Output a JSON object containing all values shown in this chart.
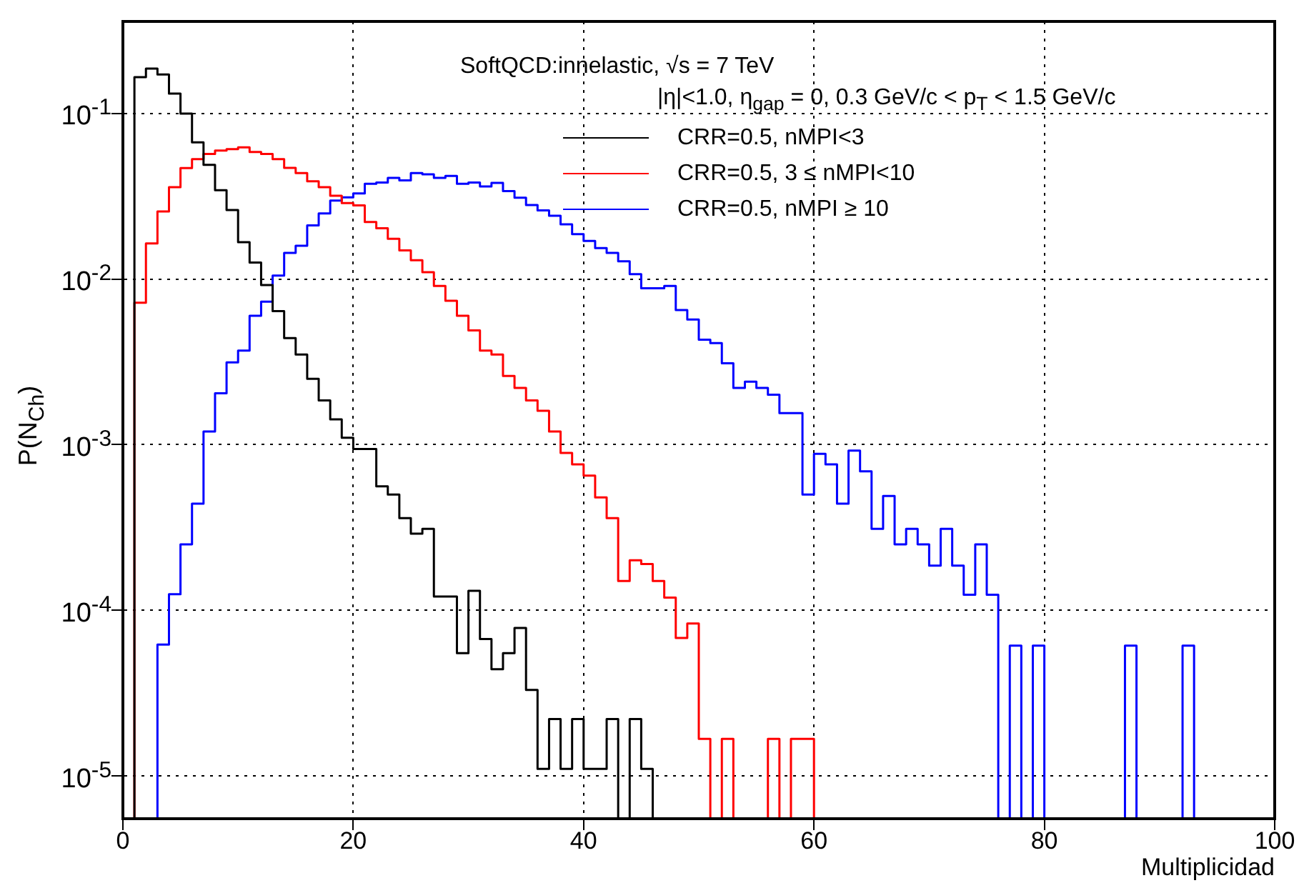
{
  "chart_data": {
    "type": "histogram",
    "title": "SoftQCD:innelastic, √s = 7 TeV",
    "annotations": [
      "|η|<1.0, η$_{gap}$ = 0, 0.3 GeV/c < p$_{T}$ < 1.5 GeV/c"
    ],
    "xlabel": "Multiplicidad",
    "ylabel": "P(N$_{Ch}$)",
    "bins": [
      0,
      1,
      2,
      3,
      4,
      5,
      6,
      7,
      8,
      9,
      10,
      11,
      12,
      13,
      14,
      15,
      16,
      17,
      18,
      19,
      20,
      21,
      22,
      23,
      24,
      25,
      26,
      27,
      28,
      29,
      30,
      31,
      32,
      33,
      34,
      35,
      36,
      37,
      38,
      39,
      40,
      41,
      42,
      43,
      44,
      45,
      46,
      47,
      48,
      49,
      50,
      51,
      52,
      53,
      54,
      55,
      56,
      57,
      58,
      59,
      60,
      61,
      62,
      63,
      64,
      65,
      66,
      67,
      68,
      69,
      70,
      71,
      72,
      73,
      74,
      75,
      76,
      77,
      78,
      79,
      80,
      81,
      82,
      83,
      84,
      85,
      86,
      87,
      88,
      89,
      90,
      91,
      92,
      93,
      94,
      95,
      96,
      97,
      98,
      99,
      100
    ],
    "series": [
      {
        "name": "CRR=0.5, nMPI<3",
        "color": "#000000",
        "values": [
          null,
          0.166,
          0.187,
          0.172,
          0.132,
          0.1,
          0.067,
          0.049,
          0.0344,
          0.0261,
          0.0167,
          0.0126,
          0.0092,
          0.0064,
          0.0044,
          0.0035,
          0.0025,
          0.00185,
          0.00142,
          0.0011,
          0.00094,
          0.00094,
          0.00056,
          0.0005,
          0.00036,
          0.00029,
          0.00031,
          0.000121,
          0.000121,
          5.5e-05,
          0.000131,
          6.7e-05,
          4.4e-05,
          5.5e-05,
          7.8e-05,
          3.3e-05,
          1.1e-05,
          2.2e-05,
          1.1e-05,
          2.2e-05,
          1.1e-05,
          1.1e-05,
          2.2e-05,
          null,
          2.2e-05,
          1.1e-05,
          null,
          null,
          null,
          null,
          null,
          null,
          null,
          null,
          null,
          null,
          null,
          null,
          null,
          null,
          null,
          null,
          null,
          null,
          null,
          null,
          null,
          null,
          null,
          null,
          null,
          null,
          null,
          null,
          null,
          null,
          null,
          null,
          null,
          null,
          null,
          null,
          null,
          null,
          null,
          null,
          null,
          null,
          null,
          null,
          null,
          null,
          null,
          null,
          null,
          null,
          null,
          null,
          null,
          null
        ]
      },
      {
        "name": "CRR=0.5, 3 ≤ nMPI<10",
        "color": "#ff0000",
        "values": [
          null,
          0.0072,
          0.0164,
          0.0256,
          0.0359,
          0.0468,
          0.053,
          0.057,
          0.0597,
          0.061,
          0.0625,
          0.0585,
          0.057,
          0.053,
          0.047,
          0.0437,
          0.039,
          0.0359,
          0.0319,
          0.0288,
          0.0279,
          0.0221,
          0.0203,
          0.0175,
          0.0149,
          0.013,
          0.011,
          0.0091,
          0.0074,
          0.006,
          0.0049,
          0.0037,
          0.0035,
          0.0026,
          0.0022,
          0.00185,
          0.0016,
          0.0012,
          0.00089,
          0.00076,
          0.00065,
          0.00048,
          0.00036,
          0.00015,
          0.0002,
          0.00019,
          0.00015,
          0.000119,
          6.8e-05,
          8.3e-05,
          1.67e-05,
          null,
          1.67e-05,
          null,
          null,
          null,
          1.67e-05,
          null,
          1.67e-05,
          1.67e-05,
          null,
          null,
          null,
          null,
          null,
          null,
          null,
          null,
          null,
          null,
          null,
          null,
          null,
          null,
          null,
          null,
          null,
          null,
          null,
          null,
          null,
          null,
          null,
          null,
          null,
          null,
          null,
          null,
          null,
          null,
          null,
          null,
          null,
          null,
          null,
          null,
          null,
          null,
          null,
          null
        ]
      },
      {
        "name": "CRR=0.5, nMPI ≥ 10",
        "color": "#0000ff",
        "values": [
          null,
          null,
          null,
          6.2e-05,
          0.000125,
          0.00025,
          0.00044,
          0.0012,
          0.00204,
          0.00314,
          0.0037,
          0.006,
          0.0073,
          0.0105,
          0.0144,
          0.0159,
          0.0211,
          0.0249,
          0.0298,
          0.0312,
          0.0329,
          0.0376,
          0.0383,
          0.0409,
          0.0395,
          0.0437,
          0.0429,
          0.0409,
          0.042,
          0.0376,
          0.0383,
          0.0363,
          0.0381,
          0.034,
          0.031,
          0.028,
          0.026,
          0.0241,
          0.0214,
          0.0187,
          0.017,
          0.0154,
          0.0144,
          0.0128,
          0.0107,
          0.0088,
          0.0088,
          0.0091,
          0.0065,
          0.0057,
          0.0043,
          0.0041,
          0.0031,
          0.0022,
          0.0024,
          0.0022,
          0.002,
          0.00155,
          0.00155,
          0.0005,
          0.00088,
          0.00076,
          0.00044,
          0.00092,
          0.00069,
          0.00031,
          0.00049,
          0.00025,
          0.00031,
          0.00025,
          0.000186,
          0.00031,
          0.000186,
          0.000124,
          0.00025,
          0.000124,
          null,
          6.1e-05,
          null,
          6.1e-05,
          null,
          null,
          null,
          null,
          null,
          null,
          null,
          6.1e-05,
          null,
          null,
          null,
          null,
          6.1e-05,
          null,
          null,
          null,
          null,
          null,
          null,
          null
        ]
      }
    ],
    "xlim": [
      0,
      100
    ],
    "xticks": [
      0,
      20,
      40,
      60,
      80,
      100
    ],
    "ylim": [
      5.5e-06,
      0.36
    ],
    "yticks": [
      {
        "value": 1e-05,
        "label": "10$^{-5}$"
      },
      {
        "value": 0.0001,
        "label": "10$^{-4}$"
      },
      {
        "value": 0.001,
        "label": "10$^{-3}$"
      },
      {
        "value": 0.01,
        "label": "10$^{-2}$"
      },
      {
        "value": 0.1,
        "label": "10$^{-1}$"
      }
    ],
    "log": "y",
    "grid": true,
    "legend": "top right"
  }
}
